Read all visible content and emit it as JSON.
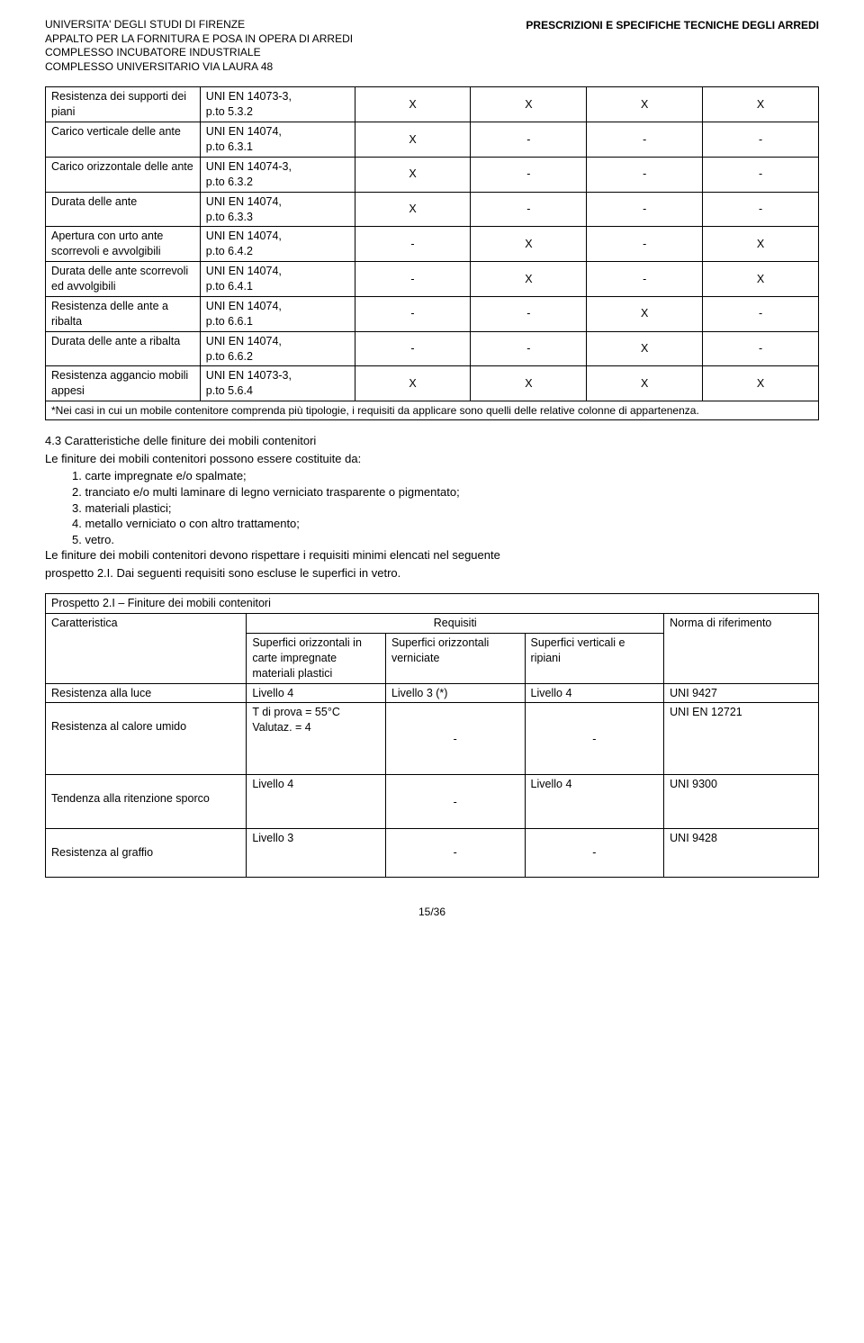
{
  "header": {
    "left": {
      "l1": "UNIVERSITA' DEGLI STUDI DI FIRENZE",
      "l2": "APPALTO PER LA FORNITURA E POSA IN OPERA DI ARREDI",
      "l3": "COMPLESSO INCUBATORE INDUSTRIALE",
      "l4": "COMPLESSO UNIVERSITARIO VIA LAURA 48"
    },
    "right": "PRESCRIZIONI E SPECIFICHE TECNICHE DEGLI ARREDI"
  },
  "table1": {
    "rows": [
      {
        "c0": "Resistenza dei supporti dei piani",
        "c1a": "UNI EN 14073-3,",
        "c1b": "p.to 5.3.2",
        "c2": "X",
        "c3": "X",
        "c4": "X",
        "c5": "X"
      },
      {
        "c0": "Carico verticale delle ante",
        "c1a": "UNI EN 14074,",
        "c1b": "p.to 6.3.1",
        "c2": "X",
        "c3": "-",
        "c4": "-",
        "c5": "-"
      },
      {
        "c0": "Carico orizzontale delle ante",
        "c1a": "UNI EN 14074-3,",
        "c1b": "p.to 6.3.2",
        "c2": "X",
        "c3": "-",
        "c4": "-",
        "c5": "-"
      },
      {
        "c0": "Durata delle ante",
        "c1a": "UNI EN 14074,",
        "c1b": "p.to 6.3.3",
        "c2": "X",
        "c3": "-",
        "c4": "-",
        "c5": "-"
      },
      {
        "c0": "Apertura con urto ante scorrevoli e avvolgibili",
        "c1a": "UNI EN 14074,",
        "c1b": "p.to 6.4.2",
        "c2": "-",
        "c3": "X",
        "c4": "-",
        "c5": "X"
      },
      {
        "c0": "Durata delle ante scorrevoli ed avvolgibili",
        "c1a": "UNI EN 14074,",
        "c1b": "p.to 6.4.1",
        "c2": "-",
        "c3": "X",
        "c4": "-",
        "c5": "X"
      },
      {
        "c0": "Resistenza delle ante a ribalta",
        "c1a": "UNI EN 14074,",
        "c1b": "p.to 6.6.1",
        "c2": "-",
        "c3": "-",
        "c4": "X",
        "c5": "-"
      },
      {
        "c0": "Durata delle ante a ribalta",
        "c1a": "UNI EN 14074,",
        "c1b": "p.to 6.6.2",
        "c2": "-",
        "c3": "-",
        "c4": "X",
        "c5": "-"
      },
      {
        "c0": "Resistenza aggancio mobili appesi",
        "c1a": "UNI EN 14073-3,",
        "c1b": "p.to 5.6.4",
        "c2": "X",
        "c3": "X",
        "c4": "X",
        "c5": "X"
      }
    ],
    "footnote": "*Nei casi in cui un mobile contenitore comprenda più tipologie, i requisiti da applicare sono quelli delle relative colonne di appartenenza."
  },
  "section": {
    "title": "4.3 Caratteristiche delle finiture dei mobili contenitori",
    "intro": "Le finiture dei mobili contenitori possono essere costituite da:",
    "items": [
      "1.   carte impregnate e/o spalmate;",
      "2.   tranciato e/o multi laminare di legno verniciato trasparente o pigmentato;",
      "3.   materiali plastici;",
      "4.   metallo verniciato o con altro trattamento;",
      "5.   vetro."
    ],
    "outro1": "Le finiture dei mobili contenitori devono rispettare i requisiti minimi elencati nel seguente",
    "outro2": "prospetto 2.I. Dai seguenti requisiti sono escluse le superfici in vetro."
  },
  "table2": {
    "caption": "Prospetto 2.I – Finiture dei mobili contenitori",
    "head": {
      "c0": "Caratteristica",
      "c1": "Requisiti",
      "c2": "Norma di riferimento",
      "sub1": "Superfici orizzontali in carte impregnate materiali plastici",
      "sub2": "Superfici orizzontali verniciate",
      "sub3": "Superfici verticali e ripiani"
    },
    "rows": [
      {
        "c0": "Resistenza alla luce",
        "c1": "Livello 4",
        "c2": "Livello 3 (*)",
        "c3": "Livello 4",
        "c4": "UNI 9427"
      },
      {
        "c0": "Resistenza al calore umido",
        "c1": "T di prova = 55°C\nValutaz. = 4",
        "c2": "-",
        "c3": "-",
        "c4": "UNI EN 12721"
      },
      {
        "c0": "Tendenza alla ritenzione sporco",
        "c1": "Livello 4",
        "c2": "-",
        "c3": "Livello 4",
        "c4": "UNI 9300"
      },
      {
        "c0": "Resistenza al graffio",
        "c1": "Livello 3",
        "c2": "-",
        "c3": "-",
        "c4": "UNI 9428"
      }
    ]
  },
  "pagenum": "15/36"
}
